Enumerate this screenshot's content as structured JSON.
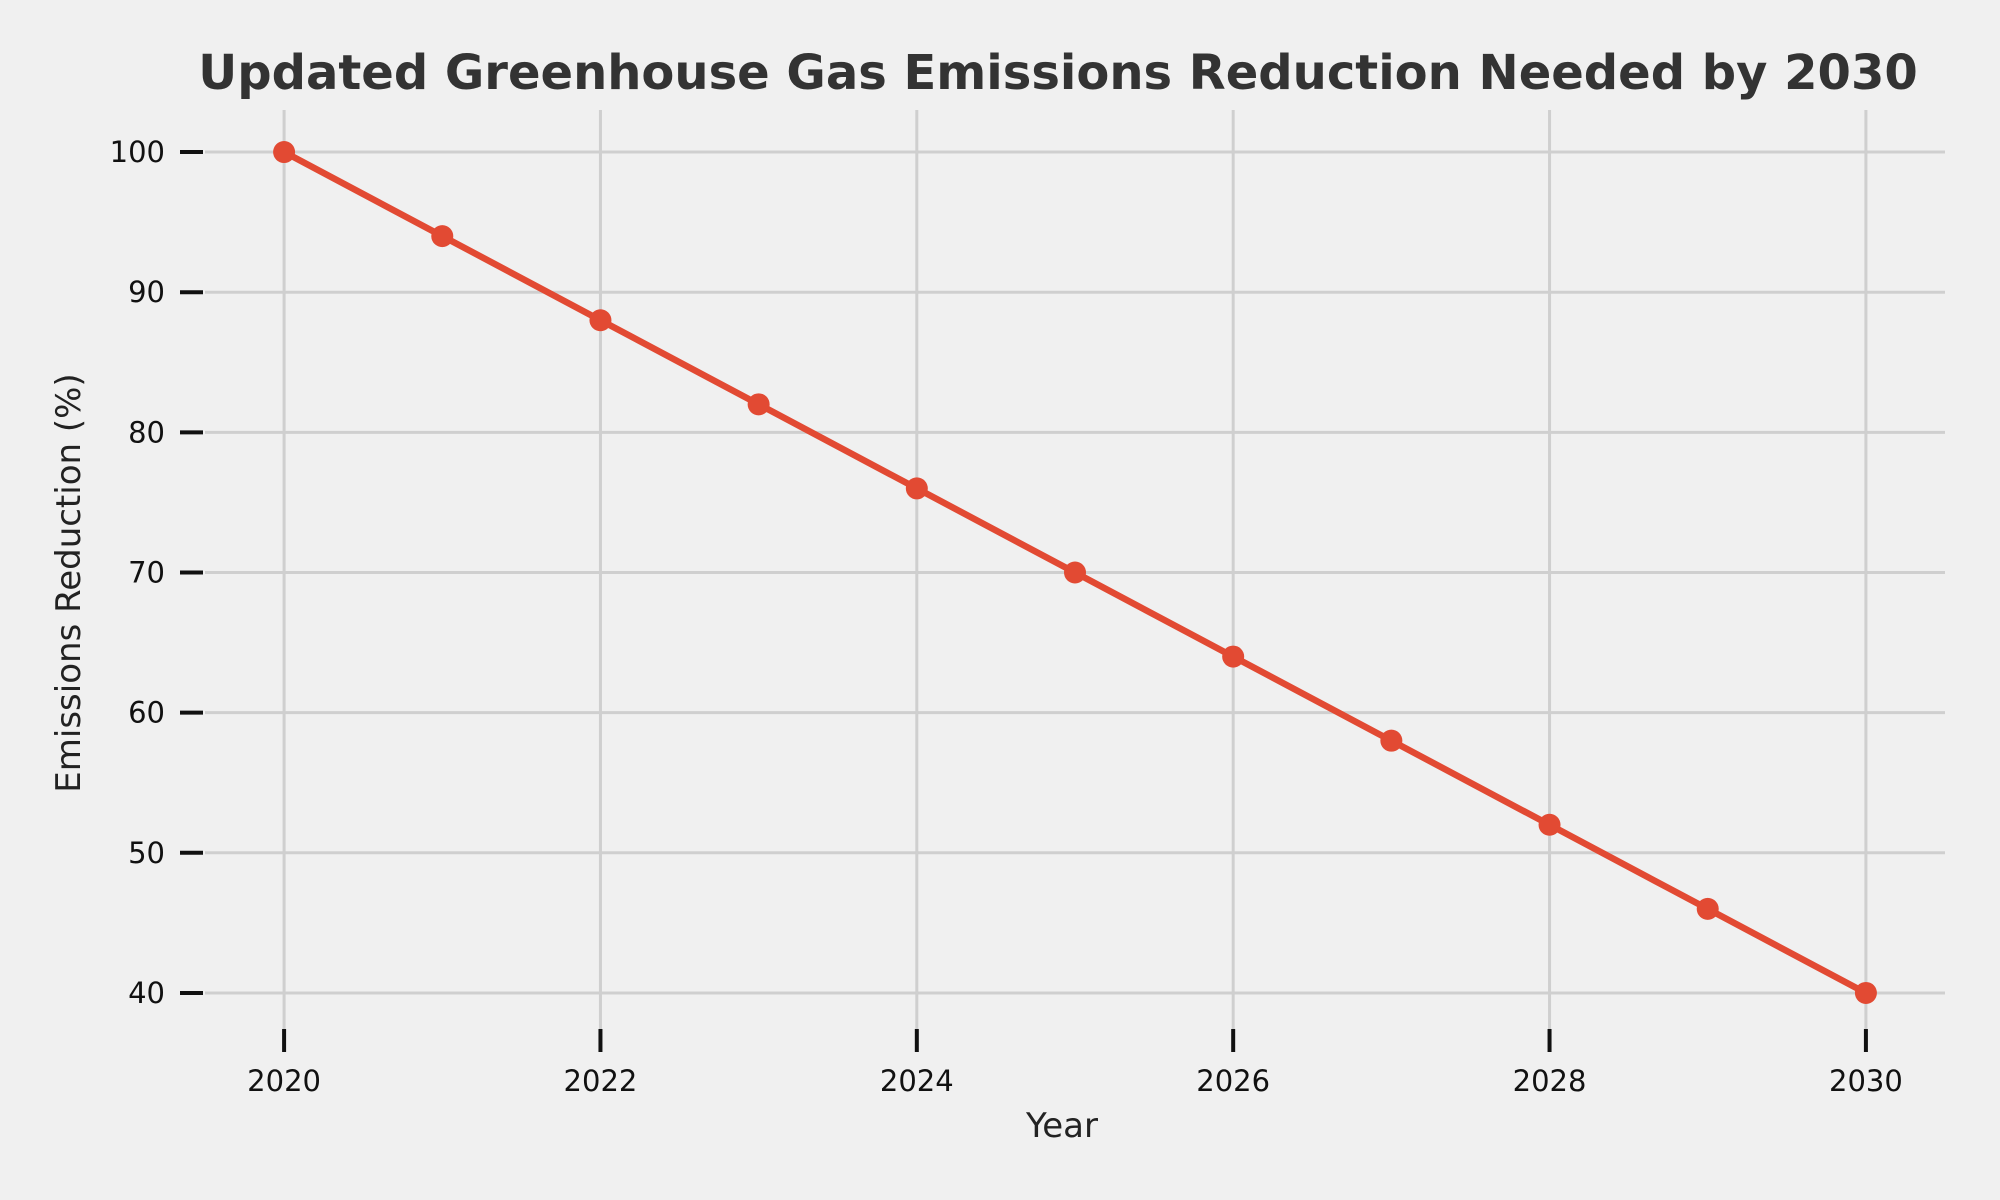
{
  "chart_data": {
    "type": "line",
    "title": "Updated Greenhouse Gas Emissions Reduction Needed by 2030",
    "xlabel": "Year",
    "ylabel": "Emissions Reduction (%)",
    "x": [
      2020,
      2021,
      2022,
      2023,
      2024,
      2025,
      2026,
      2027,
      2028,
      2029,
      2030
    ],
    "series": [
      {
        "values": [
          100,
          94,
          88,
          82,
          76,
          70,
          64,
          58,
          52,
          46,
          40
        ],
        "color": "#e24a33"
      }
    ],
    "x_ticks": [
      "2020",
      "2022",
      "2024",
      "2026",
      "2028",
      "2030"
    ],
    "y_ticks": [
      "40",
      "50",
      "60",
      "70",
      "80",
      "90",
      "100"
    ],
    "xlim": [
      2019.5,
      2030.5
    ],
    "ylim": [
      37,
      103
    ],
    "grid": true,
    "background": "#f0f0f0"
  }
}
